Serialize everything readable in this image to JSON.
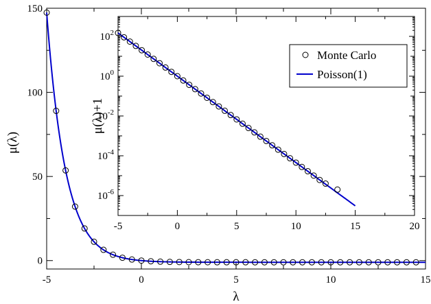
{
  "chart_data": [
    {
      "type": "line",
      "panel": "main",
      "xlabel": "λ",
      "ylabel": "μ(λ)",
      "xlim": [
        -5,
        15
      ],
      "ylim": [
        -5,
        150
      ],
      "xticks": [
        "-5",
        "0",
        "5",
        "10",
        "15"
      ],
      "yticks": [
        "0",
        "50",
        "100",
        "150"
      ],
      "series": [
        {
          "role": "markers",
          "marker": "open-circle",
          "x": [
            -5,
            -4.5,
            -4,
            -3.5,
            -3,
            -2.5,
            -2,
            -1.5,
            -1,
            -0.5,
            0,
            0.5,
            1,
            1.5,
            2,
            2.5,
            3,
            3.5,
            4,
            4.5,
            5,
            5.5,
            6,
            6.5,
            7,
            7.5,
            8,
            8.5,
            9,
            9.5,
            10,
            10.5,
            11,
            11.5,
            12,
            12.5,
            13,
            13.5,
            14,
            14.5
          ],
          "y": [
            147.4,
            89.0,
            53.6,
            32.1,
            19.1,
            11.2,
            6.4,
            3.5,
            1.7,
            0.65,
            0.0,
            -0.39,
            -0.63,
            -0.78,
            -0.86,
            -0.92,
            -0.95,
            -0.97,
            -0.98,
            -0.99,
            -0.993,
            -0.996,
            -0.998,
            -0.998,
            -0.999,
            -0.9994,
            -0.9997,
            -0.9998,
            -0.9999,
            -0.99993,
            -0.99995,
            -0.99997,
            -0.99998,
            -0.99999,
            -0.999995,
            -0.999997,
            -0.999998,
            -0.999999,
            -1.0,
            -1.0
          ]
        },
        {
          "role": "curve",
          "style": "solid",
          "color": "#0000cc",
          "x_range": [
            -5,
            15
          ]
        }
      ]
    },
    {
      "type": "line",
      "panel": "inset",
      "yscale": "log",
      "xlabel": "",
      "ylabel": "μ(λ)+1",
      "xlim": [
        -5,
        20
      ],
      "ylim": [
        1e-07,
        1000
      ],
      "xticks": [
        "-5",
        "0",
        "5",
        "10",
        "15",
        "20"
      ],
      "yticks": [
        {
          "base": "10",
          "exp": "-6",
          "value": 1e-06
        },
        {
          "base": "10",
          "exp": "-4",
          "value": 0.0001
        },
        {
          "base": "10",
          "exp": "-2",
          "value": 0.01
        },
        {
          "base": "10",
          "exp": "0",
          "value": 1
        },
        {
          "base": "10",
          "exp": "2",
          "value": 100
        }
      ],
      "legend": {
        "position": "top-right",
        "entries": [
          "Monte Carlo",
          "Poisson(1)"
        ]
      },
      "series": [
        {
          "name": "Monte Carlo",
          "marker": "open-circle",
          "x": [
            -5,
            -4.5,
            -4,
            -3.5,
            -3,
            -2.5,
            -2,
            -1.5,
            -1,
            -0.5,
            0,
            0.5,
            1,
            1.5,
            2,
            2.5,
            3,
            3.5,
            4,
            4.5,
            5,
            5.5,
            6,
            6.5,
            7,
            7.5,
            8,
            8.5,
            9,
            9.5,
            10,
            10.5,
            11,
            11.5,
            12,
            12.5,
            13.5
          ],
          "y": [
            148.4,
            90.0,
            54.6,
            33.1,
            20.1,
            12.2,
            7.39,
            4.48,
            2.72,
            1.65,
            1.0,
            0.607,
            0.368,
            0.223,
            0.135,
            0.0821,
            0.0498,
            0.0302,
            0.0183,
            0.0111,
            0.00674,
            0.00409,
            0.00248,
            0.0015,
            0.000912,
            0.000553,
            0.000335,
            0.000203,
            0.000123,
            7.49e-05,
            4.54e-05,
            2.75e-05,
            1.67e-05,
            1.01e-05,
            6.1e-06,
            4e-06,
            2e-06
          ]
        },
        {
          "name": "Poisson(1)",
          "style": "solid",
          "color": "#0000cc",
          "x_range": [
            -5,
            15
          ]
        }
      ]
    }
  ]
}
